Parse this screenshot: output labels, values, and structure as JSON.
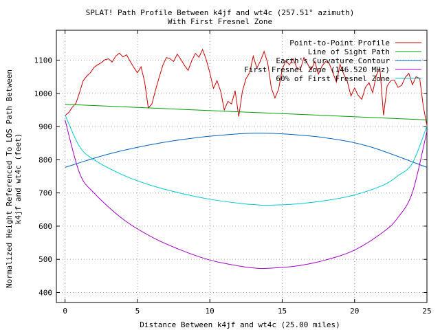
{
  "chart_data": {
    "type": "line",
    "title": "SPLAT! Path Profile Between k4jf and wt4c (257.51° azimuth)",
    "subtitle": "With First Fresnel Zone",
    "xlabel": "Distance Between k4jf and wt4c (25.00 miles)",
    "ylabel_line1": "Normalized Height Referenced To LOS Path Between",
    "ylabel_line2": "k4jf and wt4c (feet)",
    "xlim": [
      -0.6,
      25
    ],
    "ylim": [
      370,
      1190
    ],
    "x_ticks": [
      0,
      5,
      10,
      15,
      20,
      25
    ],
    "y_ticks": [
      400,
      500,
      600,
      700,
      800,
      900,
      1000,
      1100
    ],
    "grid": true,
    "legend_position": "top-right",
    "series": [
      {
        "name": "Point-to-Point Profile",
        "color": "#cc0000",
        "x": [
          0,
          0.25,
          0.5,
          0.75,
          1.0,
          1.25,
          1.5,
          1.75,
          2.0,
          2.25,
          2.5,
          2.75,
          3.0,
          3.25,
          3.5,
          3.75,
          4.0,
          4.25,
          4.5,
          4.75,
          5.0,
          5.25,
          5.5,
          5.75,
          6.0,
          6.25,
          6.5,
          6.75,
          7.0,
          7.25,
          7.5,
          7.75,
          8.0,
          8.25,
          8.5,
          8.75,
          9.0,
          9.25,
          9.5,
          9.75,
          10.0,
          10.25,
          10.5,
          10.75,
          11.0,
          11.25,
          11.5,
          11.75,
          12.0,
          12.25,
          12.5,
          12.75,
          13.0,
          13.25,
          13.5,
          13.75,
          14.0,
          14.25,
          14.5,
          14.75,
          15.0,
          15.25,
          15.5,
          15.75,
          16.0,
          16.25,
          16.5,
          16.75,
          17.0,
          17.25,
          17.5,
          17.75,
          18.0,
          18.25,
          18.5,
          18.75,
          19.0,
          19.25,
          19.5,
          19.75,
          20.0,
          20.25,
          20.5,
          20.75,
          21.0,
          21.25,
          21.5,
          21.75,
          22.0,
          22.25,
          22.5,
          22.75,
          23.0,
          23.25,
          23.5,
          23.75,
          24.0,
          24.25,
          24.5,
          24.75,
          25.0
        ],
        "y": [
          933,
          942,
          958,
          970,
          1002,
          1038,
          1052,
          1062,
          1078,
          1086,
          1092,
          1101,
          1104,
          1094,
          1112,
          1121,
          1110,
          1116,
          1096,
          1078,
          1062,
          1080,
          1034,
          956,
          968,
          1010,
          1048,
          1084,
          1108,
          1104,
          1096,
          1118,
          1102,
          1084,
          1069,
          1098,
          1120,
          1109,
          1132,
          1102,
          1062,
          1015,
          1038,
          1006,
          950,
          976,
          968,
          1008,
          930,
          1006,
          1044,
          1062,
          1112,
          1076,
          1098,
          1126,
          1092,
          1016,
          986,
          1012,
          1072,
          1098,
          1086,
          1104,
          1078,
          1071,
          1108,
          1089,
          1070,
          1096,
          1058,
          1082,
          1096,
          1090,
          1062,
          1034,
          1087,
          1058,
          1036,
          992,
          1016,
          994,
          982,
          1018,
          1032,
          1002,
          1054,
          1076,
          934,
          1022,
          1038,
          1040,
          1018,
          1024,
          1048,
          1060,
          1026,
          1050,
          1045,
          960,
          903
        ]
      },
      {
        "name": "Line of Sight Path",
        "color": "#00a000",
        "x": [
          0,
          25
        ],
        "y": [
          967,
          920
        ]
      },
      {
        "name": "Earth's Curvature Contour",
        "color": "#0060c0",
        "curve": "curvature",
        "x": [
          0,
          3,
          6,
          9,
          12,
          13.3,
          15,
          18,
          21,
          25
        ],
        "y": [
          777,
          817,
          846,
          866,
          878,
          880,
          878,
          866,
          840,
          777
        ]
      },
      {
        "name": "First Fresnel Zone (146.520 MHz)",
        "color": "#a000c0",
        "curve": "fresnel",
        "x": [
          0,
          1,
          2,
          4,
          6,
          8,
          10,
          12,
          13.3,
          14,
          16,
          18,
          20,
          22,
          23,
          24,
          25
        ],
        "y": [
          920,
          760,
          700,
          621,
          567,
          528,
          498,
          480,
          473,
          473,
          480,
          498,
          528,
          583,
          626,
          702,
          886
        ]
      },
      {
        "name": "60% of First Fresnel Zone",
        "color": "#00c8d0",
        "curve": "fresnel60",
        "x": [
          0,
          1,
          2,
          4,
          6,
          8,
          10,
          12,
          13.3,
          14,
          16,
          18,
          20,
          22,
          23,
          24,
          25
        ],
        "y": [
          935,
          840,
          800,
          754,
          722,
          699,
          681,
          669,
          664,
          663,
          667,
          677,
          694,
          724,
          752,
          790,
          902
        ]
      }
    ]
  }
}
